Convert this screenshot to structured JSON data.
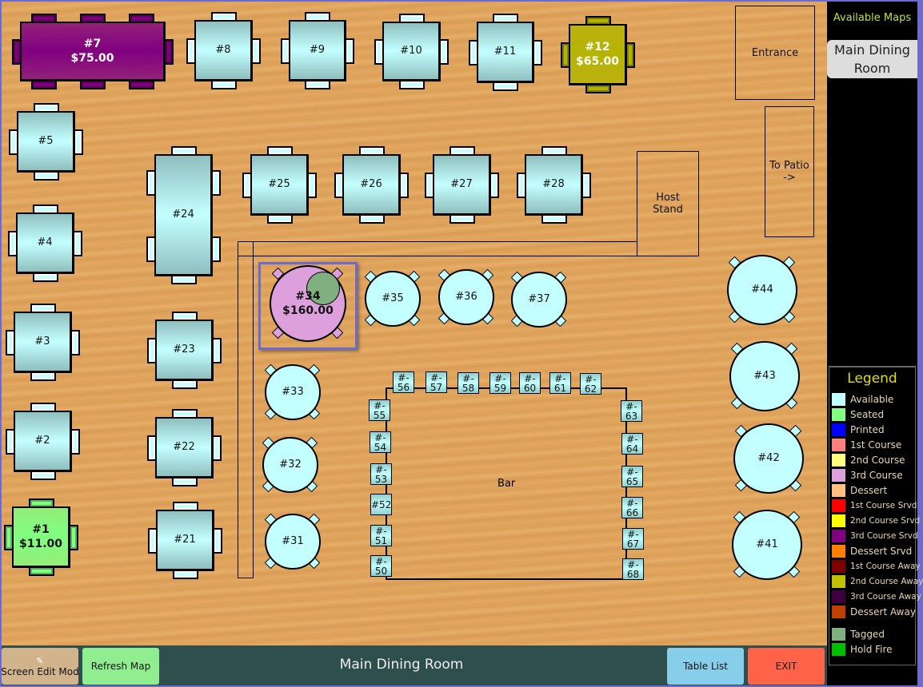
{
  "map_title": "Main Dining Room",
  "tables": [
    {
      "id": "7",
      "label": "#7",
      "amount": "$75.00",
      "status": "3rd Course Srvd",
      "color": "#800080"
    },
    {
      "id": "8",
      "label": "#8",
      "status": "Available"
    },
    {
      "id": "9",
      "label": "#9",
      "status": "Available"
    },
    {
      "id": "10",
      "label": "#10",
      "status": "Available"
    },
    {
      "id": "11",
      "label": "#11",
      "status": "Available"
    },
    {
      "id": "12",
      "label": "#12",
      "amount": "$65.00",
      "status": "2nd Course Away",
      "color": "#b4b400"
    },
    {
      "id": "5",
      "label": "#5",
      "status": "Available"
    },
    {
      "id": "4",
      "label": "#4",
      "status": "Available"
    },
    {
      "id": "3",
      "label": "#3",
      "status": "Available"
    },
    {
      "id": "2",
      "label": "#2",
      "status": "Available"
    },
    {
      "id": "1",
      "label": "#1",
      "amount": "$11.00",
      "status": "Seated",
      "color": "#80ff80"
    },
    {
      "id": "24",
      "label": "#24",
      "status": "Available"
    },
    {
      "id": "25",
      "label": "#25",
      "status": "Available"
    },
    {
      "id": "26",
      "label": "#26",
      "status": "Available"
    },
    {
      "id": "27",
      "label": "#27",
      "status": "Available"
    },
    {
      "id": "28",
      "label": "#28",
      "status": "Available"
    },
    {
      "id": "23",
      "label": "#23",
      "status": "Available"
    },
    {
      "id": "22",
      "label": "#22",
      "status": "Available"
    },
    {
      "id": "21",
      "label": "#21",
      "status": "Available"
    },
    {
      "id": "34",
      "label": "#34",
      "amount": "$160.00",
      "status": "3rd Course",
      "color": "#dda0dd",
      "tagged": true,
      "selected": true
    },
    {
      "id": "35",
      "label": "#35",
      "status": "Available"
    },
    {
      "id": "36",
      "label": "#36",
      "status": "Available"
    },
    {
      "id": "37",
      "label": "#37",
      "status": "Available"
    },
    {
      "id": "33",
      "label": "#33",
      "status": "Available"
    },
    {
      "id": "32",
      "label": "#32",
      "status": "Available"
    },
    {
      "id": "31",
      "label": "#31",
      "status": "Available"
    },
    {
      "id": "44",
      "label": "#44",
      "status": "Available"
    },
    {
      "id": "43",
      "label": "#43",
      "status": "Available"
    },
    {
      "id": "42",
      "label": "#42",
      "status": "Available"
    },
    {
      "id": "41",
      "label": "#41",
      "status": "Available"
    }
  ],
  "bar_seats": [
    {
      "id": "56",
      "label": "#-\n56"
    },
    {
      "id": "57",
      "label": "#-\n57"
    },
    {
      "id": "58",
      "label": "#-\n58"
    },
    {
      "id": "59",
      "label": "#-\n59"
    },
    {
      "id": "60",
      "label": "#-\n60"
    },
    {
      "id": "61",
      "label": "#-\n61"
    },
    {
      "id": "62",
      "label": "#-\n62"
    },
    {
      "id": "55",
      "label": "#-\n55"
    },
    {
      "id": "54",
      "label": "#-\n54"
    },
    {
      "id": "53",
      "label": "#-\n53"
    },
    {
      "id": "52",
      "label": "#52"
    },
    {
      "id": "51",
      "label": "#-\n51"
    },
    {
      "id": "50",
      "label": "#-\n50"
    },
    {
      "id": "63",
      "label": "#-\n63"
    },
    {
      "id": "64",
      "label": "#-\n64"
    },
    {
      "id": "65",
      "label": "#-\n65"
    },
    {
      "id": "66",
      "label": "#-\n66"
    },
    {
      "id": "67",
      "label": "#-\n67"
    },
    {
      "id": "68",
      "label": "#-\n68"
    }
  ],
  "areas": {
    "bar": "Bar",
    "host_stand": "Host\nStand",
    "entrance": "Entrance",
    "patio": "To Patio\n->"
  },
  "sidebar": {
    "available_maps": "Available Maps",
    "maps": [
      {
        "label": "Main Dining Room",
        "active": true
      }
    ]
  },
  "legend": {
    "title": "Legend",
    "items": [
      {
        "label": "Available",
        "color": "#c4ffff"
      },
      {
        "label": "Seated",
        "color": "#80ff80"
      },
      {
        "label": "Printed",
        "color": "#0000ff"
      },
      {
        "label": "1st Course",
        "color": "#ff8080"
      },
      {
        "label": "2nd Course",
        "color": "#ffff80"
      },
      {
        "label": "3rd Course",
        "color": "#dda0dd"
      },
      {
        "label": "Dessert",
        "color": "#ffc080"
      },
      {
        "label": "1st Course Srvd",
        "color": "#ff0000"
      },
      {
        "label": "2nd Course Srvd",
        "color": "#ffff00"
      },
      {
        "label": "3rd Course Srvd",
        "color": "#800080"
      },
      {
        "label": "Dessert Srvd",
        "color": "#ff8000"
      },
      {
        "label": "1st Course Away",
        "color": "#800000"
      },
      {
        "label": "2nd Course Away",
        "color": "#c0c000"
      },
      {
        "label": "3rd Course Away",
        "color": "#400040"
      },
      {
        "label": "Dessert Away",
        "color": "#c04000"
      },
      {
        "label": "Tagged",
        "color": "#80b080",
        "gap": true
      },
      {
        "label": "Hold Fire",
        "color": "#00c000"
      }
    ]
  },
  "bottom": {
    "edit_mode": "Screen Edit Mod",
    "refresh": "Refresh Map",
    "title": "Main Dining Room",
    "table_list": "Table List",
    "exit": "EXIT"
  }
}
